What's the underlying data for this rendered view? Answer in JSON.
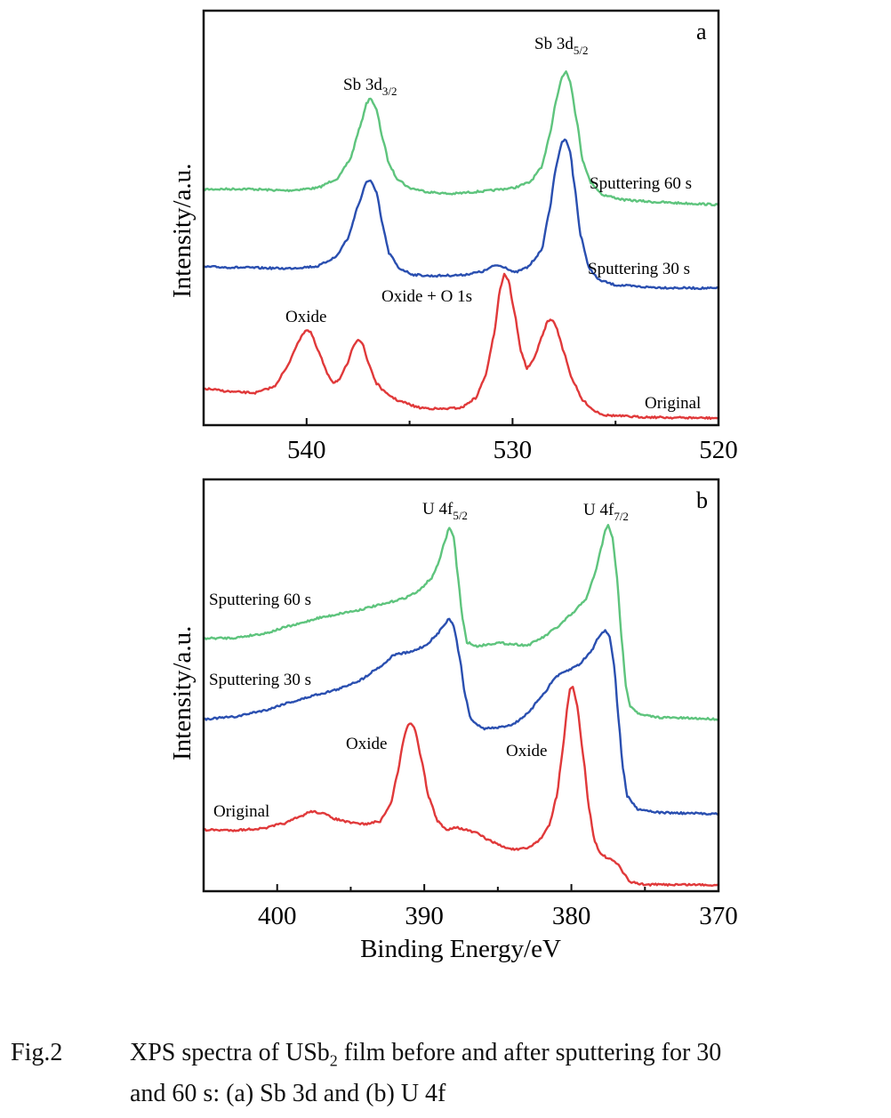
{
  "chart_data": [
    {
      "type": "line",
      "panel": "a",
      "title": "",
      "xlabel": "",
      "ylabel": "Intensity/a.u.",
      "xlim": [
        545,
        520
      ],
      "ylim": [
        0,
        100
      ],
      "x_reversed": true,
      "xticks": [
        540,
        530,
        520
      ],
      "minor_xticks": [
        535,
        525
      ],
      "grid": false,
      "series": [
        {
          "name": "Sputtering 60 s",
          "color": "#5ec47d",
          "points": [
            [
              545,
              56.9
            ],
            [
              543,
              57.0
            ],
            [
              541,
              56.6
            ],
            [
              539.5,
              57.2
            ],
            [
              538.5,
              59.5
            ],
            [
              537.9,
              64
            ],
            [
              537.4,
              72
            ],
            [
              537.1,
              77.5
            ],
            [
              536.9,
              79
            ],
            [
              536.6,
              76
            ],
            [
              536.3,
              69
            ],
            [
              536,
              63
            ],
            [
              535.6,
              59.5
            ],
            [
              535,
              57.2
            ],
            [
              534,
              56.2
            ],
            [
              533,
              55.8
            ],
            [
              531.5,
              56.4
            ],
            [
              530,
              57.2
            ],
            [
              529.2,
              58.5
            ],
            [
              528.6,
              62
            ],
            [
              528.2,
              70
            ],
            [
              527.9,
              78
            ],
            [
              527.6,
              84
            ],
            [
              527.4,
              85.4
            ],
            [
              527.2,
              83
            ],
            [
              526.9,
              74
            ],
            [
              526.6,
              64
            ],
            [
              526.2,
              58.5
            ],
            [
              525.6,
              55.5
            ],
            [
              524.5,
              54.3
            ],
            [
              523,
              53.8
            ],
            [
              521.5,
              53.5
            ],
            [
              520,
              53.2
            ]
          ]
        },
        {
          "name": "Sputtering 30 s",
          "color": "#2a4fb0",
          "points": [
            [
              545,
              38.2
            ],
            [
              543,
              38.0
            ],
            [
              541,
              37.8
            ],
            [
              539.5,
              38.3
            ],
            [
              538.6,
              40.5
            ],
            [
              538,
              45
            ],
            [
              537.5,
              53
            ],
            [
              537.1,
              58.5
            ],
            [
              536.9,
              59.2
            ],
            [
              536.6,
              56
            ],
            [
              536.3,
              48
            ],
            [
              536,
              41.5
            ],
            [
              535.5,
              37.8
            ],
            [
              534.8,
              36.3
            ],
            [
              534,
              36
            ],
            [
              532.5,
              36.2
            ],
            [
              531.5,
              37
            ],
            [
              530.8,
              38.6
            ],
            [
              530.4,
              38.2
            ],
            [
              529.9,
              36.8
            ],
            [
              529.3,
              38
            ],
            [
              528.6,
              42
            ],
            [
              528.2,
              52
            ],
            [
              527.9,
              62
            ],
            [
              527.6,
              68.4
            ],
            [
              527.4,
              68.9
            ],
            [
              527.2,
              66
            ],
            [
              527,
              58
            ],
            [
              526.7,
              46
            ],
            [
              526.3,
              38
            ],
            [
              525.8,
              35
            ],
            [
              525,
              33.8
            ],
            [
              523.5,
              33.3
            ],
            [
              522,
              33.1
            ],
            [
              520,
              33
            ]
          ]
        },
        {
          "name": "Original",
          "color": "#e0393a",
          "points": [
            [
              545,
              8.8
            ],
            [
              543.5,
              8.0
            ],
            [
              542.5,
              7.8
            ],
            [
              541.6,
              9.2
            ],
            [
              541,
              13.5
            ],
            [
              540.5,
              19
            ],
            [
              540.2,
              22
            ],
            [
              540,
              23
            ],
            [
              539.8,
              22.3
            ],
            [
              539.4,
              17.5
            ],
            [
              539,
              12.5
            ],
            [
              538.7,
              10.3
            ],
            [
              538.4,
              11
            ],
            [
              538,
              15
            ],
            [
              537.7,
              19.5
            ],
            [
              537.5,
              20.8
            ],
            [
              537.3,
              19.8
            ],
            [
              537,
              15
            ],
            [
              536.6,
              10
            ],
            [
              536.1,
              7.5
            ],
            [
              535.5,
              5.8
            ],
            [
              534.5,
              4.2
            ],
            [
              533.5,
              3.9
            ],
            [
              532.5,
              4.2
            ],
            [
              531.8,
              6.5
            ],
            [
              531.3,
              12
            ],
            [
              530.9,
              22
            ],
            [
              530.6,
              33
            ],
            [
              530.4,
              36.5
            ],
            [
              530.2,
              35
            ],
            [
              529.9,
              27
            ],
            [
              529.6,
              18
            ],
            [
              529.3,
              13.7
            ],
            [
              529,
              15.5
            ],
            [
              528.6,
              21
            ],
            [
              528.3,
              25
            ],
            [
              528.1,
              25.5
            ],
            [
              527.9,
              24
            ],
            [
              527.5,
              17.5
            ],
            [
              527.1,
              11
            ],
            [
              526.6,
              6
            ],
            [
              526,
              3.4
            ],
            [
              525.5,
              2.4
            ],
            [
              524,
              2.0
            ],
            [
              522,
              1.8
            ],
            [
              520,
              1.7
            ]
          ]
        }
      ],
      "annotations": [
        {
          "text": "Sb 3d",
          "sub": "3/2"
        },
        {
          "text": "Sb 3d",
          "sub": "5/2"
        },
        {
          "text": "Oxide"
        },
        {
          "text": "Oxide + O 1s"
        },
        {
          "text": "Sputtering 60 s"
        },
        {
          "text": "Sputtering 30 s"
        },
        {
          "text": "Original"
        }
      ],
      "panel_label": "a"
    },
    {
      "type": "line",
      "panel": "b",
      "title": "",
      "xlabel": "Binding Energy/eV",
      "ylabel": "Intensity/a.u.",
      "xlim": [
        405,
        370
      ],
      "ylim": [
        0,
        100
      ],
      "x_reversed": true,
      "xticks": [
        400,
        390,
        380,
        370
      ],
      "minor_xticks": [
        395,
        385,
        375
      ],
      "grid": false,
      "series": [
        {
          "name": "Sputtering 60 s",
          "color": "#5ec47d",
          "points": [
            [
              405,
              61.4
            ],
            [
              403,
              61.5
            ],
            [
              401,
              62.5
            ],
            [
              399,
              64.5
            ],
            [
              397,
              66.5
            ],
            [
              395,
              67.9
            ],
            [
              393,
              69.5
            ],
            [
              391.5,
              71
            ],
            [
              390.5,
              72.6
            ],
            [
              389.5,
              76
            ],
            [
              389,
              80
            ],
            [
              388.6,
              85
            ],
            [
              388.3,
              88.4
            ],
            [
              388,
              86
            ],
            [
              387.7,
              76
            ],
            [
              387.4,
              66
            ],
            [
              387.1,
              60.5
            ],
            [
              386.5,
              59.5
            ],
            [
              385,
              60.3
            ],
            [
              384,
              60
            ],
            [
              383,
              59.7
            ],
            [
              382,
              61.5
            ],
            [
              381,
              64
            ],
            [
              380,
              67.2
            ],
            [
              379,
              71
            ],
            [
              378.4,
              77
            ],
            [
              378,
              83
            ],
            [
              377.7,
              87.5
            ],
            [
              377.5,
              88.8
            ],
            [
              377.2,
              86
            ],
            [
              376.9,
              76
            ],
            [
              376.6,
              62
            ],
            [
              376.3,
              50
            ],
            [
              376,
              45
            ],
            [
              375.3,
              42.8
            ],
            [
              374,
              42.2
            ],
            [
              372,
              42
            ],
            [
              370,
              41.8
            ]
          ]
        },
        {
          "name": "Sputtering 30 s",
          "color": "#2a4fb0",
          "points": [
            [
              405,
              41.8
            ],
            [
              403,
              42.3
            ],
            [
              401,
              43.8
            ],
            [
              399,
              46
            ],
            [
              397,
              48
            ],
            [
              396,
              48.9
            ],
            [
              394.5,
              51
            ],
            [
              393,
              54.5
            ],
            [
              392,
              57.5
            ],
            [
              391,
              58
            ],
            [
              390,
              59.5
            ],
            [
              389.2,
              62
            ],
            [
              388.6,
              65
            ],
            [
              388.3,
              66.2
            ],
            [
              388,
              64.5
            ],
            [
              387.6,
              57
            ],
            [
              387.2,
              47
            ],
            [
              386.8,
              41.5
            ],
            [
              386,
              39.5
            ],
            [
              385,
              39.7
            ],
            [
              384,
              40.5
            ],
            [
              383,
              43
            ],
            [
              382,
              47.5
            ],
            [
              381,
              52.2
            ],
            [
              380.3,
              53.5
            ],
            [
              379.5,
              55
            ],
            [
              378.7,
              58
            ],
            [
              378.1,
              62
            ],
            [
              377.7,
              63.4
            ],
            [
              377.4,
              62
            ],
            [
              377.1,
              55
            ],
            [
              376.8,
              42
            ],
            [
              376.5,
              30
            ],
            [
              376.2,
              23
            ],
            [
              375.5,
              20
            ],
            [
              374,
              19.1
            ],
            [
              372,
              18.9
            ],
            [
              370,
              18.8
            ]
          ]
        },
        {
          "name": "Original",
          "color": "#e0393a",
          "points": [
            [
              405,
              14.9
            ],
            [
              403,
              14.8
            ],
            [
              401,
              15.2
            ],
            [
              399.5,
              16.5
            ],
            [
              398.5,
              18
            ],
            [
              397.7,
              19.4
            ],
            [
              397,
              19
            ],
            [
              396,
              17.5
            ],
            [
              395,
              16.6
            ],
            [
              394,
              16.3
            ],
            [
              393,
              17
            ],
            [
              392.3,
              21
            ],
            [
              391.8,
              29
            ],
            [
              391.4,
              37
            ],
            [
              391.1,
              40.5
            ],
            [
              390.9,
              40.9
            ],
            [
              390.6,
              39
            ],
            [
              390.2,
              32
            ],
            [
              389.7,
              23
            ],
            [
              389.1,
              17
            ],
            [
              388.5,
              14.9
            ],
            [
              387.9,
              15.6
            ],
            [
              387.3,
              15
            ],
            [
              386.5,
              14.2
            ],
            [
              385.5,
              12.2
            ],
            [
              384.5,
              10.6
            ],
            [
              383.8,
              10.1
            ],
            [
              383,
              10.4
            ],
            [
              382.2,
              12.3
            ],
            [
              381.5,
              16
            ],
            [
              381,
              23
            ],
            [
              380.6,
              34
            ],
            [
              380.3,
              44
            ],
            [
              380.1,
              49
            ],
            [
              379.9,
              49.4
            ],
            [
              379.6,
              45
            ],
            [
              379.2,
              33
            ],
            [
              378.8,
              20
            ],
            [
              378.4,
              12
            ],
            [
              378,
              9
            ],
            [
              377.3,
              7.6
            ],
            [
              376.8,
              6.5
            ],
            [
              376.4,
              4
            ],
            [
              376,
              2.2
            ],
            [
              375,
              1.6
            ],
            [
              372,
              1.6
            ],
            [
              370,
              1.5
            ]
          ]
        }
      ],
      "annotations": [
        {
          "text": "U 4f",
          "sub": "5/2"
        },
        {
          "text": "U 4f",
          "sub": "7/2"
        },
        {
          "text": "Oxide"
        },
        {
          "text": "Oxide"
        },
        {
          "text": "Sputtering 60 s"
        },
        {
          "text": "Sputtering 30 s"
        },
        {
          "text": "Original"
        }
      ],
      "panel_label": "b"
    }
  ],
  "caption": {
    "label": "Fig.2",
    "line1_pre": "XPS spectra of USb",
    "line1_sub": "2",
    "line1_post": " film before and after sputtering for 30",
    "line2": "and 60 s: (a)  Sb 3d and (b) U 4f"
  }
}
